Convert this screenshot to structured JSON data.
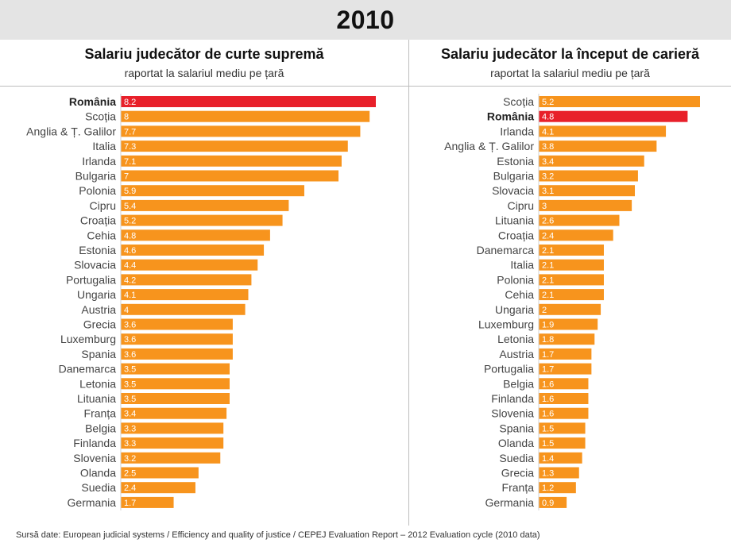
{
  "header": {
    "year": "2010"
  },
  "colors": {
    "bar": "#f7941d",
    "highlight": "#e8202a",
    "bar_label": "#ffffff",
    "category_text": "#444444"
  },
  "source": "Sursă date: European judicial systems / Efficiency and quality of justice / CEPEJ Evaluation Report – 2012 Evaluation cycle (2010 data)",
  "chart_data": [
    {
      "type": "bar",
      "orientation": "horizontal",
      "title": "Salariu judecător de curte supremă",
      "subtitle": "raportat la salariul mediu pe țară",
      "highlight": "România",
      "categories": [
        "România",
        "Scoția",
        "Anglia & Ț. Galilor",
        "Italia",
        "Irlanda",
        "Bulgaria",
        "Polonia",
        "Cipru",
        "Croația",
        "Cehia",
        "Estonia",
        "Slovacia",
        "Portugalia",
        "Ungaria",
        "Austria",
        "Grecia",
        "Luxemburg",
        "Spania",
        "Danemarca",
        "Letonia",
        "Lituania",
        "Franța",
        "Belgia",
        "Finlanda",
        "Slovenia",
        "Olanda",
        "Suedia",
        "Germania"
      ],
      "values": [
        8.2,
        8,
        7.7,
        7.3,
        7.1,
        7,
        5.9,
        5.4,
        5.2,
        4.8,
        4.6,
        4.4,
        4.2,
        4.1,
        4,
        3.6,
        3.6,
        3.6,
        3.5,
        3.5,
        3.5,
        3.4,
        3.3,
        3.3,
        3.2,
        2.5,
        2.4,
        1.7
      ],
      "labels": [
        "8.2",
        "8",
        "7.7",
        "7.3",
        "7.1",
        "7",
        "5.9",
        "5.4",
        "5.2",
        "4.8",
        "4.6",
        "4.4",
        "4.2",
        "4.1",
        "4",
        "3.6",
        "3.6",
        "3.6",
        "3.5",
        "3.5",
        "3.5",
        "3.4",
        "3.3",
        "3.3",
        "3.2",
        "2.5",
        "2.4",
        "1.7"
      ],
      "xlim": [
        0,
        8.2
      ]
    },
    {
      "type": "bar",
      "orientation": "horizontal",
      "title": "Salariu judecător la început de carieră",
      "subtitle": "raportat la salariul mediu pe țară",
      "highlight": "România",
      "categories": [
        "Scoția",
        "România",
        "Irlanda",
        "Anglia & Ț. Galilor",
        "Estonia",
        "Bulgaria",
        "Slovacia",
        "Cipru",
        "Lituania",
        "Croația",
        "Danemarca",
        "Italia",
        "Polonia",
        "Cehia",
        "Ungaria",
        "Luxemburg",
        "Letonia",
        "Austria",
        "Portugalia",
        "Belgia",
        "Finlanda",
        "Slovenia",
        "Spania",
        "Olanda",
        "Suedia",
        "Grecia",
        "Franța",
        "Germania"
      ],
      "values": [
        5.2,
        4.8,
        4.1,
        3.8,
        3.4,
        3.2,
        3.1,
        3,
        2.6,
        2.4,
        2.1,
        2.1,
        2.1,
        2.1,
        2,
        1.9,
        1.8,
        1.7,
        1.7,
        1.6,
        1.6,
        1.6,
        1.5,
        1.5,
        1.4,
        1.3,
        1.2,
        0.9
      ],
      "labels": [
        "5.2",
        "4.8",
        "4.1",
        "3.8",
        "3.4",
        "3.2",
        "3.1",
        "3",
        "2.6",
        "2.4",
        "2.1",
        "2.1",
        "2.1",
        "2.1",
        "2",
        "1.9",
        "1.8",
        "1.7",
        "1.7",
        "1.6",
        "1.6",
        "1.6",
        "1.5",
        "1.5",
        "1.4",
        "1.3",
        "1.2",
        "0.9"
      ],
      "xlim": [
        0,
        5.2
      ]
    }
  ]
}
